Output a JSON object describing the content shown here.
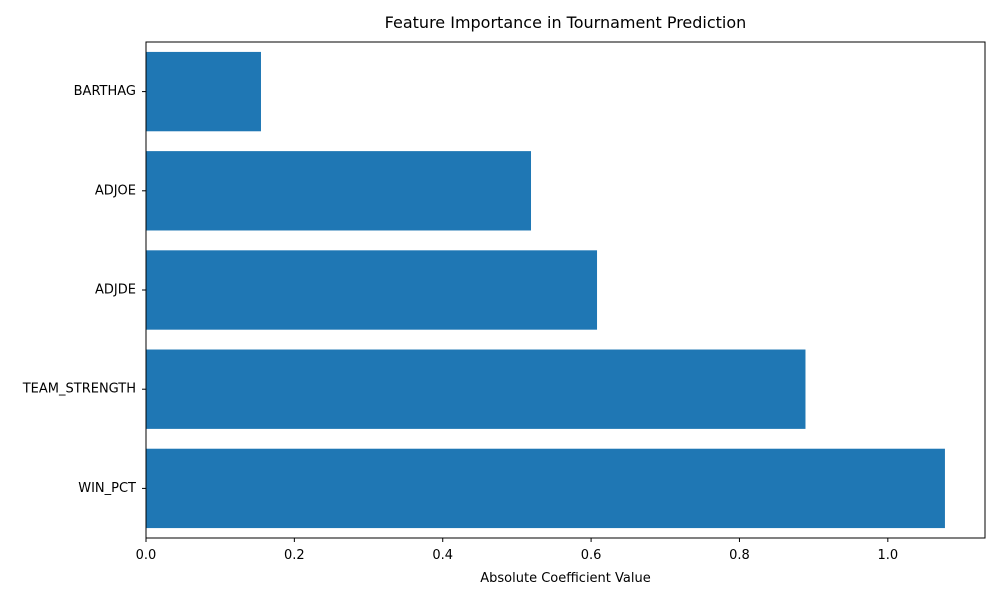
{
  "chart_data": {
    "type": "bar",
    "orientation": "horizontal",
    "title": "Feature Importance in Tournament Prediction",
    "xlabel": "Absolute Coefficient Value",
    "ylabel": "",
    "categories": [
      "BARTHAG",
      "ADJOE",
      "ADJDE",
      "TEAM_STRENGTH",
      "WIN_PCT"
    ],
    "values": [
      0.155,
      0.519,
      0.608,
      0.889,
      1.077
    ],
    "xlim": [
      0,
      1.131
    ],
    "xticks": [
      0.0,
      0.2,
      0.4,
      0.6,
      0.8,
      1.0
    ],
    "xtick_labels": [
      "0.0",
      "0.2",
      "0.4",
      "0.6",
      "0.8",
      "1.0"
    ],
    "grid": false,
    "bar_color": "#1f77b4"
  }
}
